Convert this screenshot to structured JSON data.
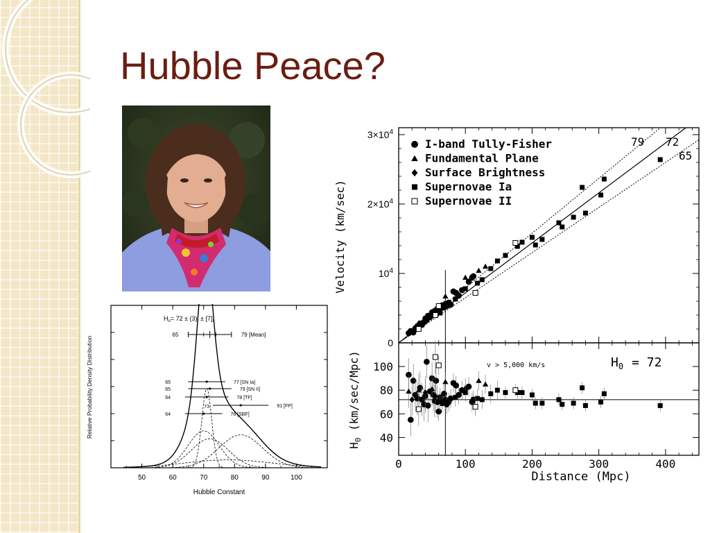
{
  "slide": {
    "title": "Hubble Peace?"
  },
  "chart_data": [
    {
      "type": "line",
      "title": "H0= 72 ± (3)r ± [7]s",
      "title_parts": {
        "main": "H",
        "sub0": "o",
        "eq": "= 72 ± (3)",
        "subr": "r",
        "mid": " ± [7]",
        "subs": "s"
      },
      "xlabel": "Hubble Constant",
      "ylabel": "Relative Probability Density Distribution",
      "xlim": [
        40,
        110
      ],
      "xticks": [
        50,
        60,
        70,
        80,
        90,
        100
      ],
      "curves": {
        "total": {
          "style": "solid",
          "components": [
            [
              70.5,
              2.4,
              1.0
            ],
            [
              70,
              5,
              0.28
            ],
            [
              72,
              6,
              0.22
            ],
            [
              82,
              7,
              0.25
            ],
            [
              78,
              14,
              0.06
            ]
          ]
        },
        "components": [
          {
            "style": "dashed",
            "mean": 70,
            "sigma": 5,
            "amplitude": 0.28
          },
          {
            "style": "dashed",
            "mean": 72,
            "sigma": 6,
            "amplitude": 0.22
          },
          {
            "style": "dashed",
            "mean": 82,
            "sigma": 7,
            "amplitude": 0.25
          },
          {
            "style": "dashed",
            "mean": 78,
            "sigma": 14,
            "amplitude": 0.06
          },
          {
            "style": "dashed",
            "mean": 71,
            "sigma": 1.6,
            "amplitude": 0.6
          }
        ]
      },
      "mean_bar": {
        "low": 65,
        "high": 79,
        "center": 72,
        "ticks": [
          70,
          74
        ],
        "label_low": "65",
        "label_high": "79 [Mean]"
      },
      "method_bars": [
        {
          "low_label": "65",
          "low": 65,
          "center": 71,
          "high": 77,
          "label": "77 [SN Ia]"
        },
        {
          "low_label": "65",
          "low": 65,
          "center": 72,
          "high": 79,
          "label": "79 [SN II]"
        },
        {
          "low_label": "64",
          "low": 64,
          "center": 71,
          "high": 78,
          "label": "78 [TF]"
        },
        {
          "low_label": "",
          "low": 73,
          "center": 82,
          "high": 91,
          "label": "91 [FP]",
          "center_label": "73"
        },
        {
          "low_label": "64",
          "low": 64,
          "center": 70,
          "high": 76,
          "label": "76 [SBF]"
        }
      ]
    },
    {
      "type": "scatter",
      "xlabel": "Distance (Mpc)",
      "ylabel_top": "Velocity (km/sec)",
      "ylabel_bottom": "H0 (km/sec/Mpc)",
      "ylabel_bottom_parts": {
        "h": "H",
        "sub": "0",
        "rest": " (km/sec/Mpc)"
      },
      "xlim": [
        0,
        450
      ],
      "ylim_top": [
        0,
        31000
      ],
      "ylim_bottom": [
        25,
        120
      ],
      "xticks": [
        0,
        100,
        200,
        300,
        400
      ],
      "yticks_top": [
        {
          "value": 0,
          "label": "0"
        },
        {
          "value": 10000,
          "label": "10",
          "sup": "4"
        },
        {
          "value": 20000,
          "label": "2×10",
          "sup": "4"
        },
        {
          "value": 30000,
          "label": "3×10",
          "sup": "4"
        }
      ],
      "yticks_bottom": [
        40,
        60,
        80,
        100
      ],
      "legend": {
        "position": "top-left",
        "entries": [
          {
            "marker": "circle",
            "label": "I-band Tully-Fisher"
          },
          {
            "marker": "triangle",
            "label": "Fundamental Plane"
          },
          {
            "marker": "diamond",
            "label": "Surface Brightness"
          },
          {
            "marker": "square",
            "label": "Supernovae Ia"
          },
          {
            "marker": "open-square",
            "label": "Supernovae II"
          }
        ]
      },
      "fit_lines": [
        {
          "H0": 79,
          "style": "dotted",
          "label": "79"
        },
        {
          "H0": 72,
          "style": "solid",
          "label": "72"
        },
        {
          "H0": 65,
          "style": "dotted",
          "label": "65"
        }
      ],
      "vertical_line_x": 70,
      "annotation": "v > 5,000 km/s",
      "hline_H0": 72,
      "h0_label": {
        "h": "H",
        "sub": "0",
        "eq": "= 72"
      },
      "series": [
        {
          "name": "I-band Tully-Fisher",
          "marker": "circle",
          "points": [
            [
              15,
              1400
            ],
            [
              18,
              1700
            ],
            [
              22,
              1500
            ],
            [
              25,
              2100
            ],
            [
              28,
              2400
            ],
            [
              32,
              2800
            ],
            [
              35,
              2600
            ],
            [
              38,
              3000
            ],
            [
              40,
              3500
            ],
            [
              42,
              3300
            ],
            [
              44,
              3900
            ],
            [
              47,
              3700
            ],
            [
              50,
              4400
            ],
            [
              52,
              4000
            ],
            [
              54,
              4600
            ],
            [
              56,
              4300
            ],
            [
              58,
              4900
            ],
            [
              60,
              5200
            ],
            [
              62,
              4800
            ],
            [
              65,
              5400
            ],
            [
              68,
              5100
            ],
            [
              70,
              5600
            ],
            [
              72,
              5300
            ],
            [
              75,
              5800
            ],
            [
              78,
              5500
            ],
            [
              82,
              7400
            ],
            [
              86,
              7200
            ],
            [
              90,
              6800
            ],
            [
              95,
              7600
            ],
            [
              105,
              8800
            ],
            [
              110,
              9400
            ],
            [
              112,
              9600
            ]
          ],
          "h0": [
            [
              15,
              93
            ],
            [
              18,
              55
            ],
            [
              22,
              88
            ],
            [
              25,
              76
            ],
            [
              28,
              73
            ],
            [
              32,
              82
            ],
            [
              35,
              72
            ],
            [
              38,
              68
            ],
            [
              40,
              75
            ],
            [
              42,
              104
            ],
            [
              44,
              67
            ],
            [
              47,
              79
            ],
            [
              50,
              90
            ],
            [
              52,
              76
            ],
            [
              54,
              71
            ],
            [
              56,
              88
            ],
            [
              58,
              70
            ],
            [
              60,
              62
            ],
            [
              62,
              74
            ],
            [
              65,
              69
            ],
            [
              68,
              77
            ],
            [
              70,
              72
            ],
            [
              72,
              68
            ],
            [
              75,
              70
            ],
            [
              78,
              73
            ],
            [
              82,
              86
            ],
            [
              86,
              84
            ],
            [
              90,
              76
            ],
            [
              95,
              80
            ],
            [
              105,
              83
            ],
            [
              110,
              70
            ],
            [
              112,
              72
            ]
          ]
        },
        {
          "name": "Fundamental Plane",
          "marker": "triangle",
          "points": [
            [
              15,
              1500
            ],
            [
              30,
              2800
            ],
            [
              50,
              4200
            ],
            [
              70,
              6700
            ],
            [
              100,
              9400
            ],
            [
              120,
              10400
            ],
            [
              130,
              11000
            ]
          ],
          "h0": [
            [
              15,
              79
            ],
            [
              30,
              80
            ],
            [
              50,
              81
            ],
            [
              70,
              87
            ],
            [
              100,
              82
            ],
            [
              120,
              88
            ],
            [
              130,
              85
            ]
          ]
        },
        {
          "name": "Surface Brightness",
          "marker": "diamond",
          "points": [
            [
              20,
              1600
            ],
            [
              40,
              3200
            ],
            [
              55,
              4500
            ]
          ],
          "h0": [
            [
              20,
              72
            ],
            [
              40,
              78
            ],
            [
              55,
              75
            ]
          ]
        },
        {
          "name": "Supernovae Ia",
          "marker": "square",
          "points": [
            [
              62,
              4300
            ],
            [
              85,
              6300
            ],
            [
              100,
              7800
            ],
            [
              118,
              8600
            ],
            [
              125,
              9100
            ],
            [
              138,
              10700
            ],
            [
              148,
              11800
            ],
            [
              160,
              12600
            ],
            [
              178,
              13900
            ],
            [
              185,
              14500
            ],
            [
              200,
              15200
            ],
            [
              205,
              14100
            ],
            [
              215,
              14900
            ],
            [
              240,
              17300
            ],
            [
              245,
              16700
            ],
            [
              262,
              18100
            ],
            [
              275,
              22400
            ],
            [
              280,
              18700
            ],
            [
              303,
              21300
            ],
            [
              308,
              23600
            ],
            [
              392,
              26400
            ]
          ],
          "h0": [
            [
              62,
              70
            ],
            [
              85,
              74
            ],
            [
              100,
              78
            ],
            [
              118,
              73
            ],
            [
              125,
              72
            ],
            [
              138,
              77
            ],
            [
              148,
              80
            ],
            [
              160,
              78
            ],
            [
              178,
              78
            ],
            [
              185,
              78
            ],
            [
              200,
              76
            ],
            [
              205,
              69
            ],
            [
              215,
              69
            ],
            [
              240,
              72
            ],
            [
              245,
              68
            ],
            [
              262,
              69
            ],
            [
              275,
              82
            ],
            [
              280,
              67
            ],
            [
              303,
              70
            ],
            [
              308,
              77
            ],
            [
              392,
              67
            ]
          ]
        },
        {
          "name": "Supernovae II",
          "marker": "open-square",
          "points": [
            [
              30,
              2000
            ],
            [
              55,
              4000
            ],
            [
              60,
              5300
            ],
            [
              115,
              7200
            ],
            [
              175,
              14400
            ]
          ],
          "h0": [
            [
              30,
              64
            ],
            [
              55,
              108
            ],
            [
              60,
              101
            ],
            [
              115,
              66
            ],
            [
              175,
              80
            ]
          ]
        }
      ]
    }
  ]
}
